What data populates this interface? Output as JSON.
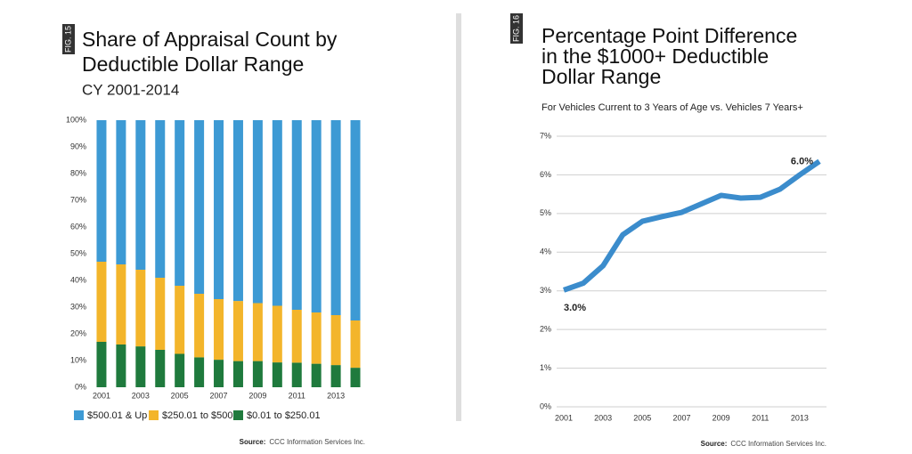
{
  "chart_data": [
    {
      "type": "stacked_bar",
      "fig": "FIG. 15",
      "title": [
        "Share of Appraisal Count by",
        "Deductible Dollar Range"
      ],
      "subtitle": "CY 2001-2014",
      "categories": [
        "2001",
        null,
        "2003",
        null,
        "2005",
        null,
        "2007",
        null,
        "2009",
        null,
        "2011",
        null,
        "2013",
        null
      ],
      "series": [
        {
          "name": "$0.01 to $250.01",
          "color": "#1f7a3d",
          "values": [
            17,
            16,
            15.3,
            14,
            12.5,
            11.2,
            10.3,
            9.8,
            9.8,
            9.3,
            9.2,
            8.8,
            8.3,
            7.3
          ]
        },
        {
          "name": "$250.01 to $500",
          "color": "#f3b52b",
          "values": [
            30,
            30,
            28.7,
            27,
            25.5,
            23.8,
            22.7,
            22.5,
            21.7,
            21.2,
            19.8,
            19.2,
            18.7,
            17.7
          ]
        },
        {
          "name": "$500.01 & Up",
          "color": "#3d9ad4",
          "values": [
            53,
            54,
            56,
            59,
            62,
            65,
            67,
            67.7,
            68.5,
            69.5,
            71,
            72,
            73,
            75
          ]
        }
      ],
      "ylim": [
        0,
        100
      ],
      "yticks": [
        {
          "value": 0,
          "label": "0%"
        },
        {
          "value": 10,
          "label": "10%"
        },
        {
          "value": 20,
          "label": "20%"
        },
        {
          "value": 30,
          "label": "30%"
        },
        {
          "value": 40,
          "label": "40%"
        },
        {
          "value": 50,
          "label": "50%"
        },
        {
          "value": 60,
          "label": "60%"
        },
        {
          "value": 70,
          "label": "70%"
        },
        {
          "value": 80,
          "label": "80%"
        },
        {
          "value": 90,
          "label": "90%"
        },
        {
          "value": 100,
          "label": "100%"
        }
      ],
      "grid": false,
      "source_label": "Source:",
      "source": "CCC Information Services Inc."
    },
    {
      "type": "line",
      "fig": "FIG. 16",
      "title": [
        "Percentage Point Difference",
        "in the $1000+ Deductible",
        "Dollar Range"
      ],
      "subtitle": "For Vehicles Current to 3 Years of Age vs. Vehicles 7 Years+",
      "categories": [
        "2001",
        null,
        "2003",
        null,
        "2005",
        null,
        "2007",
        null,
        "2009",
        null,
        "2011",
        null,
        "2013",
        null
      ],
      "series": [
        {
          "name": "Percentage Point Difference",
          "color": "#3b8ccc",
          "values": [
            3.02,
            3.2,
            3.65,
            4.45,
            4.8,
            4.92,
            5.03,
            5.25,
            5.47,
            5.4,
            5.42,
            5.63,
            6.0,
            6.35
          ]
        }
      ],
      "annotations": [
        "3.0%",
        "6.0%"
      ],
      "ylim": [
        0,
        7
      ],
      "yticks": [
        {
          "value": 0,
          "label": "0%"
        },
        {
          "value": 1,
          "label": "1%"
        },
        {
          "value": 2,
          "label": "2%"
        },
        {
          "value": 3,
          "label": "3%"
        },
        {
          "value": 4,
          "label": "4%"
        },
        {
          "value": 5,
          "label": "5%"
        },
        {
          "value": 6,
          "label": "6%"
        },
        {
          "value": 7,
          "label": "7%"
        }
      ],
      "grid": true,
      "source_label": "Source:",
      "source": "CCC Information Services Inc."
    }
  ]
}
